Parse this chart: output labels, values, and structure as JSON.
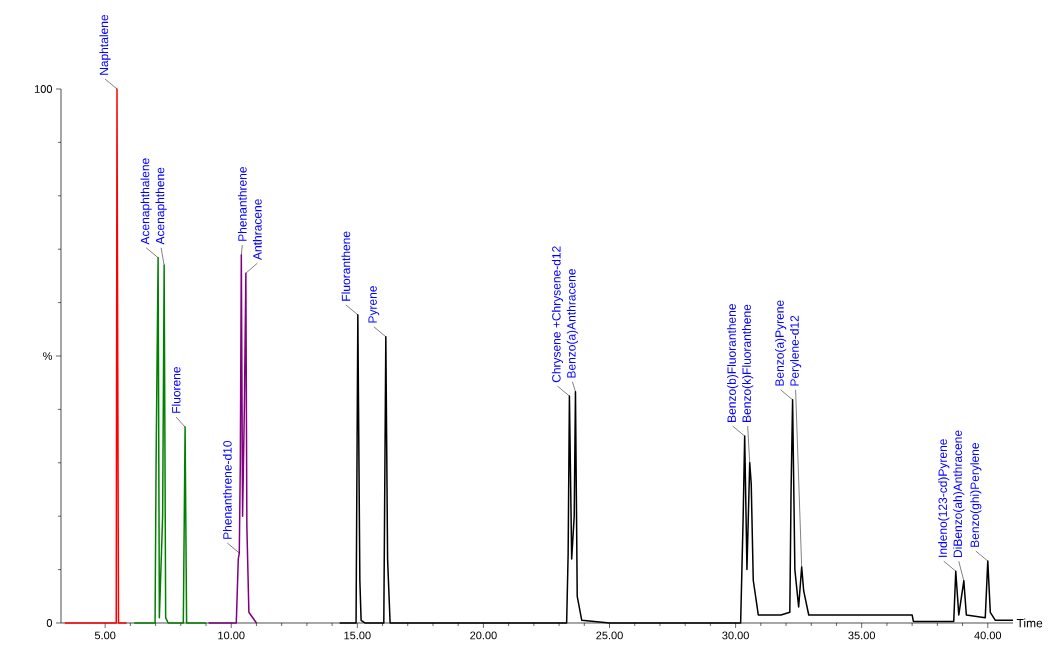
{
  "chart_data": {
    "type": "line",
    "xlabel": "Time",
    "xlim": [
      3.25,
      41
    ],
    "ylim": [
      0,
      100
    ],
    "xticks": [
      {
        "value": 5,
        "label": "5.00"
      },
      {
        "value": 10,
        "label": "10.00"
      },
      {
        "value": 15,
        "label": "15.00"
      },
      {
        "value": 20,
        "label": "20.00"
      },
      {
        "value": 25,
        "label": "25.00"
      },
      {
        "value": 30,
        "label": "30.00"
      },
      {
        "value": 35,
        "label": "35.00"
      },
      {
        "value": 40,
        "label": "40.00"
      }
    ],
    "yticks": [
      0,
      {
        "value": 50,
        "label": "%"
      },
      100
    ],
    "series": [
      {
        "color": "#ff0000",
        "x": [
          3.4,
          5.44,
          5.47,
          5.5,
          5.53,
          5.85
        ],
        "values": [
          0,
          0,
          100,
          48,
          0,
          0
        ]
      },
      {
        "color": "#008000",
        "x": [
          6.15,
          6.98,
          7.02,
          7.1,
          7.15,
          7.28,
          7.34,
          7.4,
          7.5,
          8.1,
          8.17,
          8.23,
          9
        ],
        "values": [
          0,
          0,
          30,
          68.4,
          1,
          20,
          67.0,
          1,
          0,
          0,
          36.7,
          0,
          0
        ]
      },
      {
        "color": "#800080",
        "x": [
          9.1,
          10.2,
          10.28,
          10.32,
          10.36,
          10.4,
          10.45,
          10.52,
          10.58,
          10.62,
          10.7,
          11
        ],
        "values": [
          0,
          0,
          12,
          13.1,
          30,
          68.9,
          20,
          40,
          65.5,
          18,
          2,
          0
        ]
      },
      {
        "color": "#000000",
        "x": [
          14.3,
          14.95,
          15.02,
          15.1,
          15.15,
          15.3,
          16.05,
          16.13,
          16.2,
          16.3,
          23.3,
          23.36,
          23.41,
          23.5,
          23.6,
          23.65,
          23.72,
          23.9,
          25,
          30.2,
          30.3,
          30.36,
          30.45,
          30.56,
          30.62,
          30.7,
          30.9,
          31.8,
          32.15,
          32.2,
          32.26,
          32.35,
          32.5,
          32.62,
          32.7,
          32.9,
          37,
          37.05,
          38.65,
          38.73,
          38.85,
          39.05,
          39.15,
          39.9,
          40.0,
          40.1,
          40.3,
          41
        ],
        "values": [
          0,
          0,
          57.7,
          8,
          0.5,
          0,
          0,
          53.6,
          12,
          0,
          0,
          13,
          42.5,
          12,
          20,
          43.3,
          5,
          0.5,
          0,
          0,
          20,
          35.0,
          10,
          30.0,
          26,
          8,
          1.5,
          1.5,
          2,
          25,
          41.8,
          10,
          3,
          10.5,
          6,
          1.5,
          1.5,
          0.3,
          0.3,
          9.7,
          1.5,
          7.9,
          1.5,
          1,
          11.6,
          2,
          0.5,
          0.5
        ]
      }
    ],
    "annotations": [
      {
        "text": "Naphtalene",
        "x": 5.47,
        "y": 100
      },
      {
        "text": "Acenaphthalene",
        "x": 7.1,
        "y": 68.4
      },
      {
        "text": "Acenaphthene",
        "x": 7.34,
        "y": 67.0
      },
      {
        "text": "Fluorene",
        "x": 8.17,
        "y": 36.7
      },
      {
        "text": "Phenanthrene-d10",
        "x": 10.32,
        "y": 13.1
      },
      {
        "text": "Phenanthrene",
        "x": 10.4,
        "y": 68.9
      },
      {
        "text": "Anthracene",
        "x": 10.58,
        "y": 65.5
      },
      {
        "text": "Fluoranthene",
        "x": 15.02,
        "y": 57.7
      },
      {
        "text": "Pyrene",
        "x": 16.13,
        "y": 53.6
      },
      {
        "text": "Chrysene +Chrysene-d12",
        "x": 23.41,
        "y": 42.5
      },
      {
        "text": "Benzo(a)Anthracene",
        "x": 23.65,
        "y": 43.3
      },
      {
        "text": "Benzo(b)Fluoranthene",
        "x": 30.36,
        "y": 35.0
      },
      {
        "text": "Benzo(k)Fluoranthene",
        "x": 30.56,
        "y": 30.0
      },
      {
        "text": "Benzo(a)Pyrene",
        "x": 32.26,
        "y": 41.8
      },
      {
        "text": "Perylene-d12",
        "x": 32.62,
        "y": 10.5
      },
      {
        "text": "Indeno(123-cd)Pyrene",
        "x": 38.73,
        "y": 9.7
      },
      {
        "text": "DiBenzo(ah)Anthracene",
        "x": 39.05,
        "y": 7.9
      },
      {
        "text": "Benzo(ghi)Perylene",
        "x": 40.0,
        "y": 11.6
      }
    ]
  }
}
